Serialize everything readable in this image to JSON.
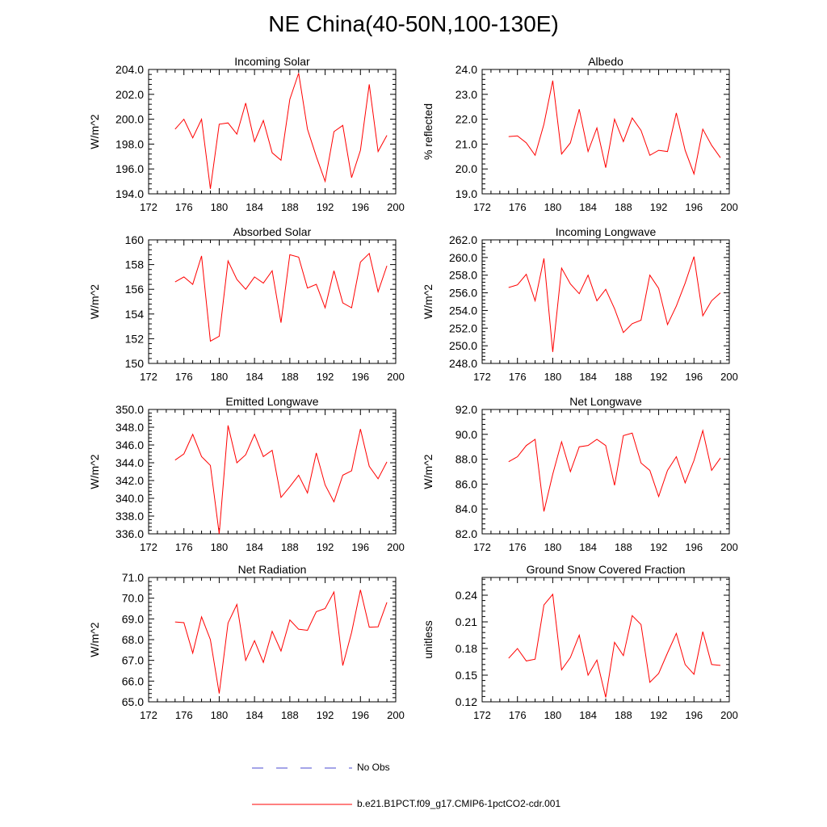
{
  "title": "NE China(40-50N,100-130E)",
  "legend": [
    {
      "label": "No Obs",
      "color": "#4a4ad0",
      "dash": true
    },
    {
      "label": "b.e21.B1PCT.f09_g17.CMIP6-1pctCO2-cdr.001",
      "color": "#ff0000",
      "dash": false
    }
  ],
  "chart_data": [
    {
      "type": "line",
      "title": "Incoming Solar",
      "ylabel": "W/m^2",
      "xlim": [
        172,
        200
      ],
      "xticks": [
        "172",
        "176",
        "180",
        "184",
        "188",
        "192",
        "196",
        "200"
      ],
      "ylim": [
        194,
        204
      ],
      "yticks": [
        "194.0",
        "196.0",
        "198.0",
        "200.0",
        "202.0",
        "204.0"
      ],
      "series": [
        {
          "color": "#ff0000",
          "x": [
            175,
            176,
            177,
            178,
            179,
            180,
            181,
            182,
            183,
            184,
            185,
            186,
            187,
            188,
            189,
            190,
            191,
            192,
            193,
            194,
            195,
            196,
            197,
            198,
            199
          ],
          "y": [
            199.2,
            200.0,
            198.5,
            200.0,
            194.4,
            199.6,
            199.7,
            198.8,
            201.3,
            198.2,
            199.9,
            197.3,
            196.7,
            201.6,
            203.7,
            199.2,
            197.0,
            195.0,
            199.0,
            199.5,
            195.3,
            197.5,
            202.8,
            197.4,
            198.7
          ]
        }
      ]
    },
    {
      "type": "line",
      "title": "Albedo",
      "ylabel": "% reflected",
      "xlim": [
        172,
        200
      ],
      "xticks": [
        "172",
        "176",
        "180",
        "184",
        "188",
        "192",
        "196",
        "200"
      ],
      "ylim": [
        19,
        24
      ],
      "yticks": [
        "19.0",
        "20.0",
        "21.0",
        "22.0",
        "23.0",
        "24.0"
      ],
      "series": [
        {
          "color": "#ff0000",
          "x": [
            175,
            176,
            177,
            178,
            179,
            180,
            181,
            182,
            183,
            184,
            185,
            186,
            187,
            188,
            189,
            190,
            191,
            192,
            193,
            194,
            195,
            196,
            197,
            198,
            199
          ],
          "y": [
            21.3,
            21.33,
            21.05,
            20.55,
            21.8,
            23.55,
            20.6,
            21.05,
            22.4,
            20.7,
            21.65,
            20.05,
            22.0,
            21.1,
            22.05,
            21.55,
            20.55,
            20.75,
            20.7,
            22.25,
            20.75,
            19.8,
            21.6,
            20.95,
            20.45
          ]
        }
      ]
    },
    {
      "type": "line",
      "title": "Absorbed Solar",
      "ylabel": "W/m^2",
      "xlim": [
        172,
        200
      ],
      "xticks": [
        "172",
        "176",
        "180",
        "184",
        "188",
        "192",
        "196",
        "200"
      ],
      "ylim": [
        150,
        160
      ],
      "yticks": [
        "150",
        "152",
        "154",
        "156",
        "158",
        "160"
      ],
      "series": [
        {
          "color": "#ff0000",
          "x": [
            175,
            176,
            177,
            178,
            179,
            180,
            181,
            182,
            183,
            184,
            185,
            186,
            187,
            188,
            189,
            190,
            191,
            192,
            193,
            194,
            195,
            196,
            197,
            198,
            199
          ],
          "y": [
            156.6,
            157.0,
            156.4,
            158.7,
            151.8,
            152.2,
            158.3,
            156.8,
            156.0,
            157.0,
            156.5,
            157.5,
            153.3,
            158.8,
            158.6,
            156.1,
            156.4,
            154.5,
            157.5,
            154.9,
            154.5,
            158.2,
            158.9,
            155.8,
            157.9
          ]
        }
      ]
    },
    {
      "type": "line",
      "title": "Incoming Longwave",
      "ylabel": "W/m^2",
      "xlim": [
        172,
        200
      ],
      "xticks": [
        "172",
        "176",
        "180",
        "184",
        "188",
        "192",
        "196",
        "200"
      ],
      "ylim": [
        248,
        262
      ],
      "yticks": [
        "248.0",
        "250.0",
        "252.0",
        "254.0",
        "256.0",
        "258.0",
        "260.0",
        "262.0"
      ],
      "series": [
        {
          "color": "#ff0000",
          "x": [
            175,
            176,
            177,
            178,
            179,
            180,
            181,
            182,
            183,
            184,
            185,
            186,
            187,
            188,
            189,
            190,
            191,
            192,
            193,
            194,
            195,
            196,
            197,
            198,
            199
          ],
          "y": [
            256.6,
            256.9,
            258.1,
            255.1,
            259.9,
            249.3,
            258.8,
            257.0,
            255.9,
            258.0,
            255.1,
            256.4,
            254.2,
            251.5,
            252.5,
            252.9,
            258.0,
            256.5,
            252.4,
            254.5,
            257.1,
            260.1,
            253.4,
            255.1,
            256.0
          ]
        }
      ]
    },
    {
      "type": "line",
      "title": "Emitted Longwave",
      "ylabel": "W/m^2",
      "xlim": [
        172,
        200
      ],
      "xticks": [
        "172",
        "176",
        "180",
        "184",
        "188",
        "192",
        "196",
        "200"
      ],
      "ylim": [
        336,
        350
      ],
      "yticks": [
        "336.0",
        "338.0",
        "340.0",
        "342.0",
        "344.0",
        "346.0",
        "348.0",
        "350.0"
      ],
      "series": [
        {
          "color": "#ff0000",
          "x": [
            175,
            176,
            177,
            178,
            179,
            180,
            181,
            182,
            183,
            184,
            185,
            186,
            187,
            188,
            189,
            190,
            191,
            192,
            193,
            194,
            195,
            196,
            197,
            198,
            199
          ],
          "y": [
            344.3,
            345.0,
            347.2,
            344.7,
            343.7,
            336.0,
            348.2,
            344.0,
            344.9,
            347.2,
            344.7,
            345.4,
            340.1,
            341.3,
            342.6,
            340.6,
            345.1,
            341.5,
            339.6,
            342.6,
            343.1,
            347.8,
            343.6,
            342.2,
            344.1
          ]
        }
      ]
    },
    {
      "type": "line",
      "title": "Net Longwave",
      "ylabel": "W/m^2",
      "xlim": [
        172,
        200
      ],
      "xticks": [
        "172",
        "176",
        "180",
        "184",
        "188",
        "192",
        "196",
        "200"
      ],
      "ylim": [
        82,
        92
      ],
      "yticks": [
        "82.0",
        "84.0",
        "86.0",
        "88.0",
        "90.0",
        "92.0"
      ],
      "series": [
        {
          "color": "#ff0000",
          "x": [
            175,
            176,
            177,
            178,
            179,
            180,
            181,
            182,
            183,
            184,
            185,
            186,
            187,
            188,
            189,
            190,
            191,
            192,
            193,
            194,
            195,
            196,
            197,
            198,
            199
          ],
          "y": [
            87.8,
            88.2,
            89.1,
            89.6,
            83.8,
            86.8,
            89.4,
            87.0,
            89.0,
            89.1,
            89.6,
            89.1,
            85.9,
            89.9,
            90.1,
            87.7,
            87.1,
            85.0,
            87.1,
            88.2,
            86.1,
            87.9,
            90.3,
            87.1,
            88.1
          ]
        }
      ]
    },
    {
      "type": "line",
      "title": "Net Radiation",
      "ylabel": "W/m^2",
      "xlim": [
        172,
        200
      ],
      "xticks": [
        "172",
        "176",
        "180",
        "184",
        "188",
        "192",
        "196",
        "200"
      ],
      "ylim": [
        65,
        71
      ],
      "yticks": [
        "65.0",
        "66.0",
        "67.0",
        "68.0",
        "69.0",
        "70.0",
        "71.0"
      ],
      "series": [
        {
          "color": "#ff0000",
          "x": [
            175,
            176,
            177,
            178,
            179,
            180,
            181,
            182,
            183,
            184,
            185,
            186,
            187,
            188,
            189,
            190,
            191,
            192,
            193,
            194,
            195,
            196,
            197,
            198,
            199
          ],
          "y": [
            68.85,
            68.82,
            67.35,
            69.1,
            68.0,
            65.4,
            68.8,
            69.7,
            67.0,
            67.95,
            66.9,
            68.4,
            67.45,
            68.95,
            68.5,
            68.45,
            69.35,
            69.5,
            70.3,
            66.75,
            68.35,
            70.4,
            68.6,
            68.62,
            69.8
          ]
        }
      ]
    },
    {
      "type": "line",
      "title": "Ground Snow Covered Fraction",
      "ylabel": "unitless",
      "xlim": [
        172,
        200
      ],
      "xticks": [
        "172",
        "176",
        "180",
        "184",
        "188",
        "192",
        "196",
        "200"
      ],
      "ylim": [
        0.12,
        0.26
      ],
      "yticks": [
        "0.12",
        "0.15",
        "0.18",
        "0.21",
        "0.24"
      ],
      "series": [
        {
          "color": "#ff0000",
          "x": [
            175,
            176,
            177,
            178,
            179,
            180,
            181,
            182,
            183,
            184,
            185,
            186,
            187,
            188,
            189,
            190,
            191,
            192,
            193,
            194,
            195,
            196,
            197,
            198,
            199
          ],
          "y": [
            0.169,
            0.18,
            0.166,
            0.168,
            0.229,
            0.241,
            0.156,
            0.17,
            0.195,
            0.15,
            0.167,
            0.125,
            0.187,
            0.172,
            0.217,
            0.207,
            0.142,
            0.152,
            0.175,
            0.197,
            0.162,
            0.151,
            0.199,
            0.162,
            0.161
          ]
        }
      ]
    }
  ]
}
